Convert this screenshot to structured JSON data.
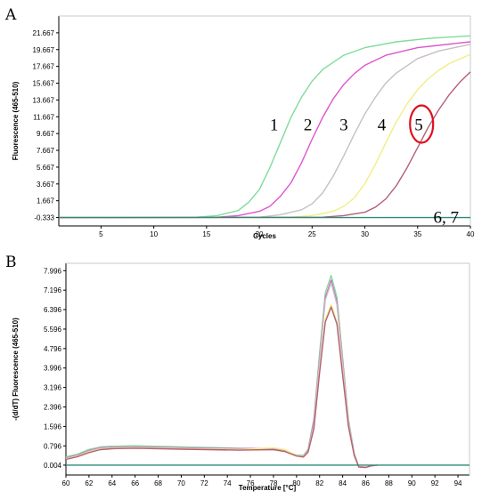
{
  "colors": {
    "s1": "#7fdc9a",
    "s2": "#dd55cf",
    "s3": "#c6c0c4",
    "s4": "#f2ee82",
    "s5": "#b45e76",
    "neg": "#2f8a78",
    "circle": "#e0101e"
  },
  "panels": [
    "A",
    "B"
  ],
  "chart_data": [
    {
      "type": "line",
      "panel": "A",
      "xlabel": "Cycles",
      "ylabel": "Fluorescence (465-510)",
      "xlim": [
        1,
        40
      ],
      "ylim": [
        -1.333,
        23.667
      ],
      "x_ticks": [
        5,
        10,
        15,
        20,
        25,
        30,
        35,
        40
      ],
      "y_ticks": [
        -0.333,
        1.667,
        3.667,
        5.667,
        7.667,
        9.667,
        11.667,
        13.667,
        15.667,
        17.667,
        19.667,
        21.667
      ],
      "y_tick_labels": [
        "-0.333",
        "1.667",
        "3.667",
        "5.667",
        "7.667",
        "9.667",
        "11.667",
        "13.667",
        "15.667",
        "17.667",
        "19.667",
        "21.667"
      ],
      "grid": false,
      "series": [
        {
          "name": "1",
          "label_pos": [
            21.0,
            10.8
          ],
          "x": [
            1,
            14,
            16,
            18,
            19,
            20,
            21,
            22,
            23,
            24,
            25,
            26,
            28,
            30,
            33,
            36,
            40
          ],
          "y": [
            -0.333,
            -0.3,
            -0.1,
            0.5,
            1.5,
            3.0,
            5.6,
            8.6,
            11.6,
            14.0,
            15.9,
            17.3,
            19.0,
            19.9,
            20.6,
            21.0,
            21.3
          ]
        },
        {
          "name": "2",
          "label_pos": [
            24.2,
            10.8
          ],
          "x": [
            1,
            16,
            18,
            20,
            21,
            22,
            23,
            24,
            25,
            26,
            27,
            28,
            29,
            30,
            32,
            35,
            40
          ],
          "y": [
            -0.333,
            -0.3,
            -0.1,
            0.4,
            1.0,
            2.2,
            3.8,
            6.2,
            9.0,
            11.6,
            13.8,
            15.5,
            16.8,
            17.8,
            19.0,
            19.9,
            20.6
          ]
        },
        {
          "name": "3",
          "label_pos": [
            27.6,
            10.8
          ],
          "x": [
            1,
            20,
            22,
            24,
            25,
            26,
            27,
            28,
            29,
            30,
            31,
            32,
            33,
            35,
            37,
            40
          ],
          "y": [
            -0.333,
            -0.3,
            0.0,
            0.6,
            1.3,
            2.6,
            4.6,
            7.0,
            9.6,
            12.0,
            14.0,
            15.7,
            16.9,
            18.6,
            19.5,
            20.3
          ]
        },
        {
          "name": "4",
          "label_pos": [
            31.2,
            10.8
          ],
          "x": [
            1,
            23,
            25,
            27,
            28,
            29,
            30,
            31,
            32,
            33,
            34,
            35,
            36,
            37,
            38,
            40
          ],
          "y": [
            -0.333,
            -0.3,
            -0.1,
            0.4,
            1.0,
            2.0,
            3.7,
            6.0,
            8.6,
            11.1,
            13.2,
            14.9,
            16.2,
            17.2,
            18.0,
            19.1
          ]
        },
        {
          "name": "5",
          "label_pos": [
            34.7,
            10.8
          ],
          "x": [
            1,
            26,
            28,
            30,
            31,
            32,
            33,
            34,
            35,
            36,
            37,
            38,
            39,
            40
          ],
          "y": [
            -0.333,
            -0.3,
            -0.1,
            0.3,
            0.9,
            1.9,
            3.5,
            5.6,
            8.0,
            10.4,
            12.5,
            14.3,
            15.8,
            17.0
          ]
        },
        {
          "name": "6, 7",
          "label_pos": [
            36.5,
            -0.2
          ],
          "x": [
            1,
            40
          ],
          "y": [
            -0.333,
            -0.333
          ]
        }
      ],
      "highlight": {
        "series": "5",
        "shape": "ellipse"
      }
    },
    {
      "type": "line",
      "panel": "B",
      "xlabel": "Temperature [°C]",
      "ylabel": "-(d/dT) Fluorescence (465-510)",
      "xlim": [
        60,
        95
      ],
      "ylim": [
        -0.4,
        8.3
      ],
      "x_ticks": [
        60,
        62,
        64,
        66,
        68,
        70,
        72,
        74,
        76,
        78,
        80,
        82,
        84,
        86,
        88,
        90,
        92,
        94
      ],
      "y_ticks": [
        0.004,
        0.796,
        1.596,
        2.396,
        3.196,
        3.996,
        4.796,
        5.596,
        6.396,
        7.196,
        7.996
      ],
      "y_tick_labels": [
        "0.004",
        "0.796",
        "1.596",
        "2.396",
        "3.196",
        "3.996",
        "4.796",
        "5.596",
        "6.396",
        "7.196",
        "7.996"
      ],
      "grid": false,
      "series": [
        {
          "color_key": "s1",
          "x": [
            60,
            61,
            62,
            63,
            64,
            66,
            70,
            75,
            78,
            79,
            80,
            80.6,
            81,
            81.5,
            82,
            82.5,
            83,
            83.5,
            84,
            84.5,
            85,
            85.4,
            86,
            86.5,
            87
          ],
          "y": [
            0.35,
            0.45,
            0.65,
            0.75,
            0.78,
            0.8,
            0.75,
            0.7,
            0.68,
            0.6,
            0.42,
            0.4,
            0.65,
            1.9,
            4.6,
            7.1,
            7.8,
            6.9,
            4.4,
            1.9,
            0.5,
            -0.05,
            -0.08,
            -0.02,
            0.0
          ]
        },
        {
          "color_key": "s2",
          "x": [
            60,
            61,
            62,
            63,
            64,
            66,
            70,
            75,
            78,
            79,
            80,
            80.6,
            81,
            81.5,
            82,
            82.5,
            83,
            83.5,
            84,
            84.5,
            85,
            85.4,
            86,
            86.5,
            87
          ],
          "y": [
            0.3,
            0.42,
            0.6,
            0.72,
            0.74,
            0.76,
            0.72,
            0.68,
            0.7,
            0.62,
            0.4,
            0.38,
            0.6,
            1.8,
            4.4,
            6.9,
            7.6,
            6.7,
            4.3,
            1.8,
            0.45,
            -0.06,
            -0.09,
            -0.02,
            0.0
          ]
        },
        {
          "color_key": "s3",
          "x": [
            60,
            61,
            62,
            63,
            64,
            66,
            70,
            75,
            78,
            79,
            80,
            80.6,
            81,
            81.5,
            82,
            82.5,
            83,
            83.5,
            84,
            84.5,
            85,
            85.4,
            86,
            86.5,
            87
          ],
          "y": [
            0.28,
            0.4,
            0.58,
            0.7,
            0.72,
            0.74,
            0.7,
            0.66,
            0.66,
            0.58,
            0.4,
            0.36,
            0.58,
            1.7,
            4.3,
            6.8,
            7.5,
            6.6,
            4.2,
            1.8,
            0.45,
            -0.06,
            -0.08,
            -0.02,
            0.0
          ]
        },
        {
          "color_key": "s4",
          "x": [
            60,
            61,
            62,
            63,
            64,
            66,
            70,
            75,
            78,
            79,
            80,
            80.6,
            81,
            81.5,
            82,
            82.5,
            83,
            83.5,
            84,
            84.5,
            85,
            85.4,
            86,
            86.5,
            87
          ],
          "y": [
            0.25,
            0.36,
            0.55,
            0.66,
            0.7,
            0.72,
            0.68,
            0.64,
            0.72,
            0.64,
            0.4,
            0.35,
            0.55,
            1.5,
            3.9,
            6.0,
            6.6,
            5.9,
            3.8,
            1.6,
            0.4,
            -0.06,
            -0.08,
            -0.02,
            0.0
          ]
        },
        {
          "color_key": "s5",
          "x": [
            60,
            61,
            62,
            63,
            64,
            66,
            70,
            75,
            78,
            79,
            80,
            80.6,
            81,
            81.5,
            82,
            82.5,
            83,
            83.5,
            84,
            84.5,
            85,
            85.4,
            86,
            86.5,
            87
          ],
          "y": [
            0.24,
            0.35,
            0.52,
            0.64,
            0.68,
            0.7,
            0.66,
            0.62,
            0.64,
            0.56,
            0.38,
            0.34,
            0.54,
            1.5,
            3.8,
            5.9,
            6.5,
            5.8,
            3.7,
            1.6,
            0.4,
            -0.07,
            -0.09,
            -0.02,
            0.0
          ]
        },
        {
          "color_key": "neg",
          "x": [
            60,
            95
          ],
          "y": [
            0.004,
            0.004
          ]
        }
      ]
    }
  ]
}
